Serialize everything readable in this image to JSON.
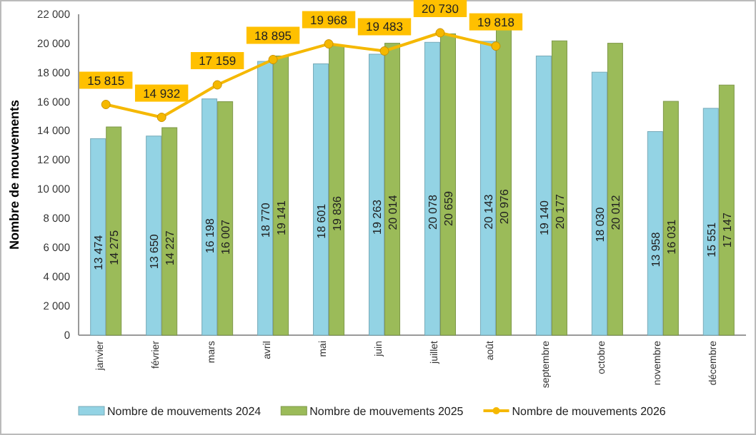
{
  "chart_data": {
    "type": "bar",
    "ylabel": "Nombre de mouvements",
    "categories": [
      "janvier",
      "février",
      "mars",
      "avril",
      "mai",
      "juin",
      "juillet",
      "août",
      "septembre",
      "octobre",
      "novembre",
      "décembre"
    ],
    "series": [
      {
        "name": "Nombre de mouvements 2024",
        "color": "#93d3e4",
        "values": [
          13474,
          13650,
          16198,
          18770,
          18601,
          19263,
          20078,
          20143,
          19140,
          18030,
          13958,
          15551
        ]
      },
      {
        "name": "Nombre de mouvements 2025",
        "color": "#9bbb59",
        "values": [
          14275,
          14227,
          16007,
          19141,
          19836,
          20014,
          20659,
          20976,
          20177,
          20012,
          16031,
          17147
        ]
      },
      {
        "name": "Nombre de mouvements 2026",
        "type": "line",
        "color": "#f5b800",
        "marker": "circle",
        "values": [
          15815,
          14932,
          17159,
          18895,
          19968,
          19483,
          20730,
          19818,
          null,
          null,
          null,
          null
        ]
      }
    ],
    "ylim": [
      0,
      22000
    ],
    "yticks": [
      {
        "value": 0,
        "label": "0"
      },
      {
        "value": 2000,
        "label": "2 000"
      },
      {
        "value": 4000,
        "label": "4 000"
      },
      {
        "value": 6000,
        "label": "6 000"
      },
      {
        "value": 8000,
        "label": "8 000"
      },
      {
        "value": 10000,
        "label": "10 000"
      },
      {
        "value": 12000,
        "label": "12 000"
      },
      {
        "value": 14000,
        "label": "14 000"
      },
      {
        "value": 16000,
        "label": "16 000"
      },
      {
        "value": 18000,
        "label": "18 000"
      },
      {
        "value": 20000,
        "label": "20 000"
      },
      {
        "value": 22000,
        "label": "22 000"
      }
    ],
    "grid": false,
    "legend": "bottom",
    "data_labels": true
  }
}
